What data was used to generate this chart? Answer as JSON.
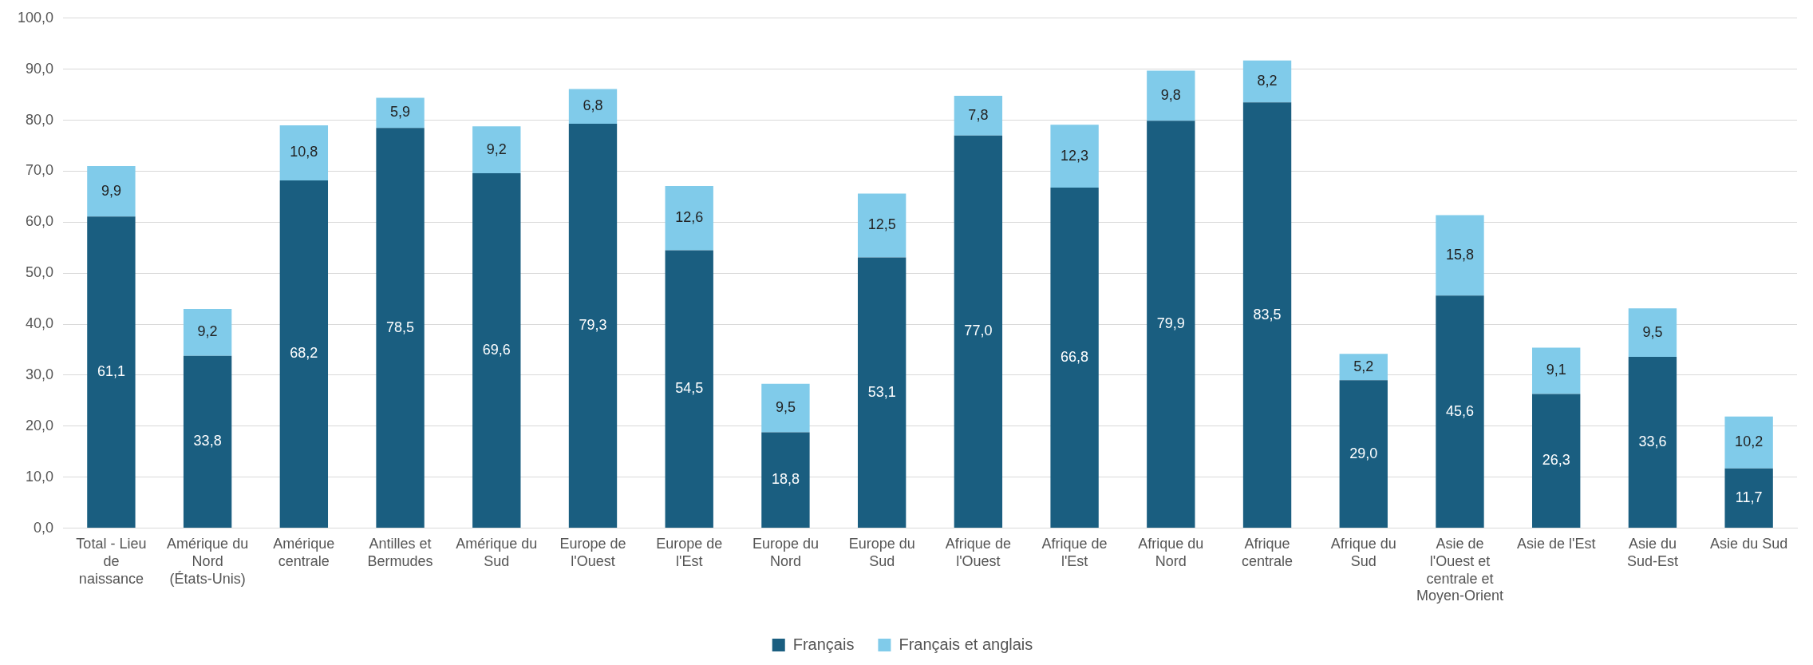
{
  "chart_data": {
    "type": "bar",
    "stacked": true,
    "grid": "y",
    "legend": "bottom",
    "categories": [
      "Total - Lieu de naissance",
      "Amérique du Nord (États-Unis)",
      "Amérique centrale",
      "Antilles et Bermudes",
      "Amérique du Sud",
      "Europe de l'Ouest",
      "Europe de l'Est",
      "Europe du Nord",
      "Europe du Sud",
      "Afrique de l'Ouest",
      "Afrique de l'Est",
      "Afrique du Nord",
      "Afrique centrale",
      "Afrique du Sud",
      "Asie de l'Ouest et centrale et Moyen-Orient",
      "Asie de l'Est",
      "Asie du Sud-Est",
      "Asie du Sud"
    ],
    "ylim": [
      0,
      100
    ],
    "yticks": [
      {
        "value": 0,
        "label": "0,0"
      },
      {
        "value": 10,
        "label": "10,0"
      },
      {
        "value": 20,
        "label": "20,0"
      },
      {
        "value": 30,
        "label": "30,0"
      },
      {
        "value": 40,
        "label": "40,0"
      },
      {
        "value": 50,
        "label": "50,0"
      },
      {
        "value": 60,
        "label": "60,0"
      },
      {
        "value": 70,
        "label": "70,0"
      },
      {
        "value": 80,
        "label": "80,0"
      },
      {
        "value": 90,
        "label": "90,0"
      },
      {
        "value": 100,
        "label": "100,0"
      }
    ],
    "series": [
      {
        "name": "Français",
        "color": "#1a5e80",
        "values": [
          61.1,
          33.8,
          68.2,
          78.5,
          69.6,
          79.3,
          54.5,
          18.8,
          53.1,
          77.0,
          66.8,
          79.9,
          83.5,
          29.0,
          45.6,
          26.3,
          33.6,
          11.7
        ],
        "value_labels": [
          "61,1",
          "33,8",
          "68,2",
          "78,5",
          "69,6",
          "79,3",
          "54,5",
          "18,8",
          "53,1",
          "77,0",
          "66,8",
          "79,9",
          "83,5",
          "29,0",
          "45,6",
          "26,3",
          "33,6",
          "11,7"
        ]
      },
      {
        "name": "Français et anglais",
        "color": "#80cbea",
        "values": [
          9.9,
          9.2,
          10.8,
          5.9,
          9.2,
          6.8,
          12.6,
          9.5,
          12.5,
          7.8,
          12.3,
          9.8,
          8.2,
          5.2,
          15.8,
          9.1,
          9.5,
          10.2
        ],
        "value_labels": [
          "9,9",
          "9,2",
          "10,8",
          "5,9",
          "9,2",
          "6,8",
          "12,6",
          "9,5",
          "12,5",
          "7,8",
          "12,3",
          "9,8",
          "8,2",
          "5,2",
          "15,8",
          "9,1",
          "9,5",
          "10,2"
        ]
      }
    ]
  }
}
